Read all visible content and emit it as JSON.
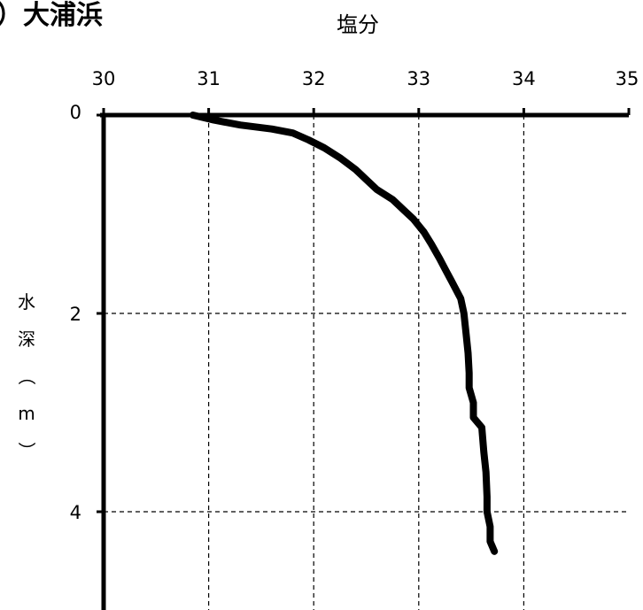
{
  "chart_data": {
    "type": "line",
    "title": "）大浦浜",
    "xlabel": "塩分",
    "ylabel": "水深（m）",
    "xlim": [
      30,
      35
    ],
    "ylim": [
      0,
      5
    ],
    "x_ticks": [
      "30",
      "31",
      "32",
      "33",
      "34",
      "35"
    ],
    "y_ticks": [
      "0",
      "2",
      "4"
    ],
    "x_axis_position": "top",
    "y_axis_inverted": true,
    "grid": true,
    "grid_style": "dashed",
    "line_color": "#000000",
    "series": [
      {
        "points": [
          {
            "x": 30.85,
            "y": 0.0
          },
          {
            "x": 31.05,
            "y": 0.05
          },
          {
            "x": 31.3,
            "y": 0.1
          },
          {
            "x": 31.6,
            "y": 0.14
          },
          {
            "x": 31.8,
            "y": 0.18
          },
          {
            "x": 31.95,
            "y": 0.25
          },
          {
            "x": 32.1,
            "y": 0.33
          },
          {
            "x": 32.25,
            "y": 0.43
          },
          {
            "x": 32.4,
            "y": 0.55
          },
          {
            "x": 32.5,
            "y": 0.65
          },
          {
            "x": 32.6,
            "y": 0.75
          },
          {
            "x": 32.75,
            "y": 0.85
          },
          {
            "x": 32.85,
            "y": 0.95
          },
          {
            "x": 32.95,
            "y": 1.05
          },
          {
            "x": 33.05,
            "y": 1.18
          },
          {
            "x": 33.12,
            "y": 1.3
          },
          {
            "x": 33.2,
            "y": 1.45
          },
          {
            "x": 33.25,
            "y": 1.55
          },
          {
            "x": 33.3,
            "y": 1.65
          },
          {
            "x": 33.35,
            "y": 1.75
          },
          {
            "x": 33.4,
            "y": 1.85
          },
          {
            "x": 33.43,
            "y": 2.0
          },
          {
            "x": 33.45,
            "y": 2.2
          },
          {
            "x": 33.47,
            "y": 2.4
          },
          {
            "x": 33.48,
            "y": 2.6
          },
          {
            "x": 33.48,
            "y": 2.75
          },
          {
            "x": 33.52,
            "y": 2.9
          },
          {
            "x": 33.52,
            "y": 3.05
          },
          {
            "x": 33.6,
            "y": 3.15
          },
          {
            "x": 33.62,
            "y": 3.4
          },
          {
            "x": 33.64,
            "y": 3.6
          },
          {
            "x": 33.65,
            "y": 3.85
          },
          {
            "x": 33.65,
            "y": 4.0
          },
          {
            "x": 33.68,
            "y": 4.15
          },
          {
            "x": 33.68,
            "y": 4.3
          },
          {
            "x": 33.72,
            "y": 4.4
          }
        ]
      }
    ]
  }
}
